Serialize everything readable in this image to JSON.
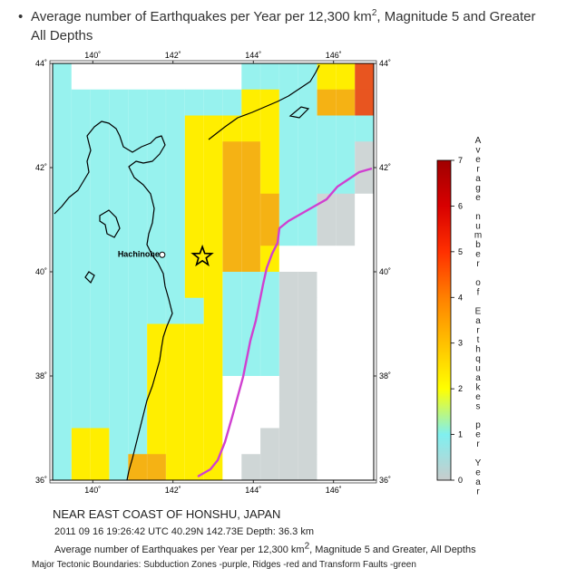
{
  "header": {
    "bullet": "•",
    "title_pre": "Average number of Earthquakes per Year per 12,300 km",
    "title_sup": "2",
    "title_post": ", Magnitude 5 and Greater",
    "title_line2": "All Depths"
  },
  "map": {
    "lon_range": [
      139,
      147
    ],
    "lat_range": [
      36,
      44
    ],
    "lon_ticks": [
      "140˚",
      "142˚",
      "144˚",
      "146˚"
    ],
    "lon_tick_values": [
      140,
      142,
      144,
      146
    ],
    "lat_ticks": [
      "36˚",
      "38˚",
      "40˚",
      "42˚",
      "44˚"
    ],
    "lat_tick_values": [
      36,
      38,
      40,
      42,
      44
    ],
    "city": "Hachinohe",
    "city_coord": [
      141.5,
      40.5
    ],
    "epicenter_coord": [
      142.73,
      40.29
    ],
    "grid_note": "rows listed north (44) to south (36), columns west (139) to east (147), cell size 0.5 x 1 degree",
    "grid_colors": [
      [
        "c",
        "w",
        "w",
        "w",
        "w",
        "w",
        "w",
        "w",
        "w",
        "w",
        "c",
        "c",
        "c",
        "c",
        "y",
        "y",
        "rd"
      ],
      [
        "c",
        "c",
        "c",
        "c",
        "c",
        "c",
        "c",
        "c",
        "c",
        "c",
        "y",
        "y",
        "c",
        "c",
        "o",
        "o",
        "rd"
      ],
      [
        "c",
        "c",
        "c",
        "c",
        "c",
        "c",
        "c",
        "y",
        "y",
        "y",
        "y",
        "y",
        "c",
        "c",
        "c",
        "c",
        "c"
      ],
      [
        "c",
        "c",
        "c",
        "c",
        "c",
        "c",
        "c",
        "y",
        "y",
        "o",
        "o",
        "y",
        "c",
        "c",
        "c",
        "c",
        "g"
      ],
      [
        "c",
        "c",
        "c",
        "c",
        "c",
        "c",
        "c",
        "y",
        "y",
        "o",
        "o",
        "y",
        "c",
        "c",
        "c",
        "c",
        "g"
      ],
      [
        "c",
        "c",
        "c",
        "c",
        "c",
        "c",
        "c",
        "y",
        "y",
        "o",
        "o",
        "o",
        "c",
        "c",
        "g",
        "g",
        "w"
      ],
      [
        "c",
        "c",
        "c",
        "c",
        "c",
        "c",
        "c",
        "y",
        "y",
        "o",
        "o",
        "o",
        "c",
        "c",
        "g",
        "g",
        "w"
      ],
      [
        "c",
        "c",
        "c",
        "c",
        "c",
        "c",
        "c",
        "y",
        "y",
        "o",
        "o",
        "y",
        "w",
        "w",
        "w",
        "w",
        "w"
      ],
      [
        "c",
        "c",
        "c",
        "c",
        "c",
        "c",
        "c",
        "y",
        "y",
        "c",
        "c",
        "c",
        "g",
        "g",
        "w",
        "w",
        "w"
      ],
      [
        "c",
        "c",
        "c",
        "c",
        "c",
        "c",
        "c",
        "c",
        "y",
        "c",
        "c",
        "c",
        "g",
        "g",
        "w",
        "w",
        "w"
      ],
      [
        "c",
        "c",
        "c",
        "c",
        "c",
        "y",
        "y",
        "y",
        "y",
        "c",
        "c",
        "c",
        "g",
        "g",
        "w",
        "w",
        "w"
      ],
      [
        "c",
        "c",
        "c",
        "c",
        "c",
        "y",
        "y",
        "y",
        "y",
        "c",
        "c",
        "c",
        "g",
        "g",
        "w",
        "w",
        "w"
      ],
      [
        "c",
        "c",
        "c",
        "c",
        "c",
        "y",
        "y",
        "y",
        "y",
        "w",
        "w",
        "w",
        "g",
        "g",
        "w",
        "w",
        "w"
      ],
      [
        "c",
        "c",
        "c",
        "c",
        "c",
        "y",
        "y",
        "y",
        "y",
        "w",
        "w",
        "w",
        "g",
        "g",
        "w",
        "w",
        "w"
      ],
      [
        "c",
        "y",
        "y",
        "c",
        "c",
        "y",
        "y",
        "y",
        "y",
        "w",
        "w",
        "g",
        "g",
        "g",
        "w",
        "w",
        "w"
      ],
      [
        "c",
        "y",
        "y",
        "c",
        "o",
        "o",
        "y",
        "y",
        "y",
        "w",
        "g",
        "g",
        "g",
        "g",
        "w",
        "w",
        "w"
      ]
    ],
    "colors": {
      "w": "#ffffff",
      "g": "#cfd6d6",
      "c": "#97f2ee",
      "y": "#ffee00",
      "o": "#f5b214",
      "rd": "#e85520"
    }
  },
  "colorbar": {
    "ticks": [
      "0",
      "1",
      "2",
      "3",
      "4",
      "5",
      "6",
      "7"
    ],
    "stops": [
      "#c8cccc",
      "#80f0f0",
      "#ffff00",
      "#ffc000",
      "#ff8000",
      "#ff3000",
      "#d80000",
      "#a00000"
    ],
    "label": "Average number of Earthquakes per Year"
  },
  "captions": {
    "region": "NEAR EAST COAST OF HONSHU, JAPAN",
    "event": "2011 09 16 19:26:42 UTC 40.29N 142.73E Depth: 36.3 km",
    "avg_pre": "Average number of Earthquakes per Year per 12,300 km",
    "avg_sup": "2",
    "avg_post": ", Magnitude 5 and Greater, All Depths",
    "tectonic": "Major Tectonic Boundaries: Subduction Zones -purple, Ridges -red and Transform Faults -green"
  },
  "style": {
    "subduction_color": "#d040d0",
    "coast_color": "#000000"
  }
}
